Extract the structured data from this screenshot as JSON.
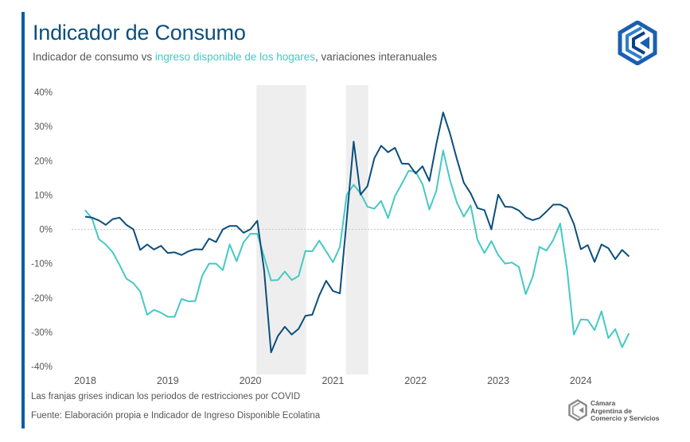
{
  "header": {
    "title": "Indicador de Consumo",
    "subtitle_part1": "Indicador de consumo vs ",
    "subtitle_highlight": "ingreso disponible de los hogares",
    "subtitle_part2": ", variaciones interanuales"
  },
  "footer": {
    "note": "Las franjas grises indican los periodos de restricciones por COVID",
    "source": "Fuente: Elaboración propia e Indicador de Ingreso Disponible Ecolatina",
    "org_name_line1": "Cámara",
    "org_name_line2": "Argentina de",
    "org_name_line3": "Comercio y Servicios"
  },
  "colors": {
    "accent": "#0a5fa0",
    "title": "#0b4f7c",
    "consumo": "#0b4f7c",
    "ingreso": "#45c9c4",
    "band": "#eeeeee"
  },
  "chart_data": {
    "type": "line",
    "title": "Indicador de Consumo",
    "xlabel": "",
    "ylabel": "",
    "x_start": "2018-01",
    "x_frequency": "monthly",
    "x_tick_labels": [
      "2018",
      "2019",
      "2020",
      "2021",
      "2022",
      "2023",
      "2024"
    ],
    "y_tick_labels": [
      "40%",
      "30%",
      "20%",
      "10%",
      "0%",
      "-10%",
      "-20%",
      "-30%",
      "-40%"
    ],
    "ylim": [
      -40,
      40
    ],
    "y_unit": "%",
    "grid": "zero line only",
    "legend": "none (series identified by subtitle colors)",
    "bands": [
      {
        "start": "2020-02",
        "end": "2020-09"
      },
      {
        "start": "2021-03",
        "end": "2021-06"
      }
    ],
    "series": [
      {
        "color": "#0b4f7c",
        "values": [
          3.7,
          3.4,
          2.6,
          1.3,
          3.0,
          3.4,
          1.3,
          0,
          -6.0,
          -4.4,
          -5.9,
          -4.8,
          -6.9,
          -6.7,
          -7.5,
          -6.4,
          -5.8,
          -5.9,
          -2.7,
          -3.7,
          0,
          1.0,
          1.0,
          -1.0,
          0,
          2.5,
          -12,
          -35.9,
          -31.1,
          -28.4,
          -30.7,
          -29,
          -25.2,
          -24.9,
          -19.3,
          -15.0,
          -18.0,
          -18.7,
          3,
          25.6,
          10.1,
          12.6,
          20.7,
          24.4,
          22.5,
          23.8,
          19.2,
          19.1,
          16.3,
          18.4,
          14.1,
          24.8,
          34.1,
          27.9,
          20.5,
          13.6,
          10.5,
          6.2,
          5.6,
          0,
          10.1,
          6.6,
          6.5,
          5.5,
          3.5,
          2.7,
          3.3,
          5.2,
          7.2,
          7.2,
          6.1,
          1.6,
          -5.8,
          -4.6,
          -9.5,
          -4.4,
          -5.5,
          -8.7,
          -6.0,
          -7.9
        ]
      },
      {
        "color": "#45c9c4",
        "values": [
          5.6,
          3.1,
          -2.9,
          -4.4,
          -6.7,
          -10.4,
          -14.4,
          -15.7,
          -18.1,
          -24.9,
          -23.5,
          -24.3,
          -25.5,
          -25.5,
          -20.3,
          -21.0,
          -20.9,
          -13.5,
          -10.0,
          -10.0,
          -11.9,
          -4.4,
          -9.3,
          -3.8,
          -1.3,
          -1.3,
          -8,
          -14.9,
          -14.8,
          -12.3,
          -14.8,
          -13.6,
          -6.3,
          -6.4,
          -3.3,
          -6.4,
          -9.6,
          -5.1,
          10.1,
          13.0,
          10.5,
          6.6,
          6.0,
          8.3,
          3.3,
          9.7,
          13.3,
          17.1,
          16.8,
          13.2,
          5.8,
          11.2,
          23.0,
          14.3,
          7.8,
          3.7,
          7.0,
          -3.1,
          -6.9,
          -3.4,
          -7.5,
          -10.0,
          -9.7,
          -11.0,
          -18.9,
          -13.9,
          -5.1,
          -6.2,
          -3.1,
          1.7,
          -11.6,
          -30.7,
          -26.3,
          -26.4,
          -29.4,
          -23.9,
          -31.7,
          -29.1,
          -34.4,
          -30.3
        ]
      }
    ]
  }
}
